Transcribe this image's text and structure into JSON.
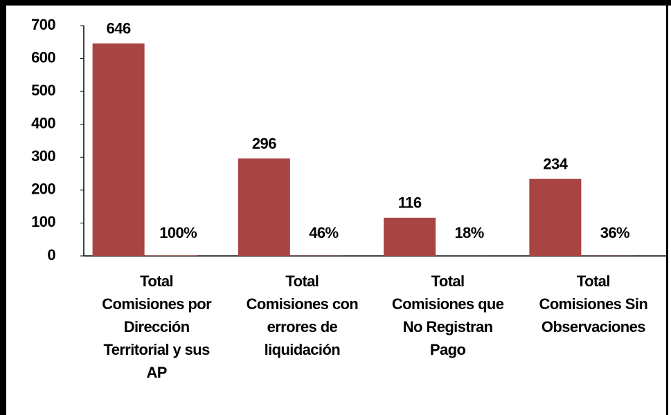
{
  "chart_data": {
    "type": "bar",
    "categories": [
      "Total\nComisiones por\nDirección\nTerritorial y sus\nAP",
      "Total\nComisiones con\nerrores de\nliquidación",
      "Total\nComisiones que\nNo Registran\nPago",
      "Total\nComisiones Sin\nObservaciones"
    ],
    "series": [
      {
        "color": "#a84442",
        "values": [
          646,
          296,
          116,
          234
        ]
      },
      {
        "color": "#a84442",
        "values": [
          1,
          0.46,
          0.18,
          0.36
        ],
        "value_labels": [
          "100%",
          "46%",
          "18%",
          "36%"
        ]
      }
    ],
    "ylim": [
      0,
      700
    ],
    "yticks": [
      0,
      100,
      200,
      300,
      400,
      500,
      600,
      700
    ]
  }
}
